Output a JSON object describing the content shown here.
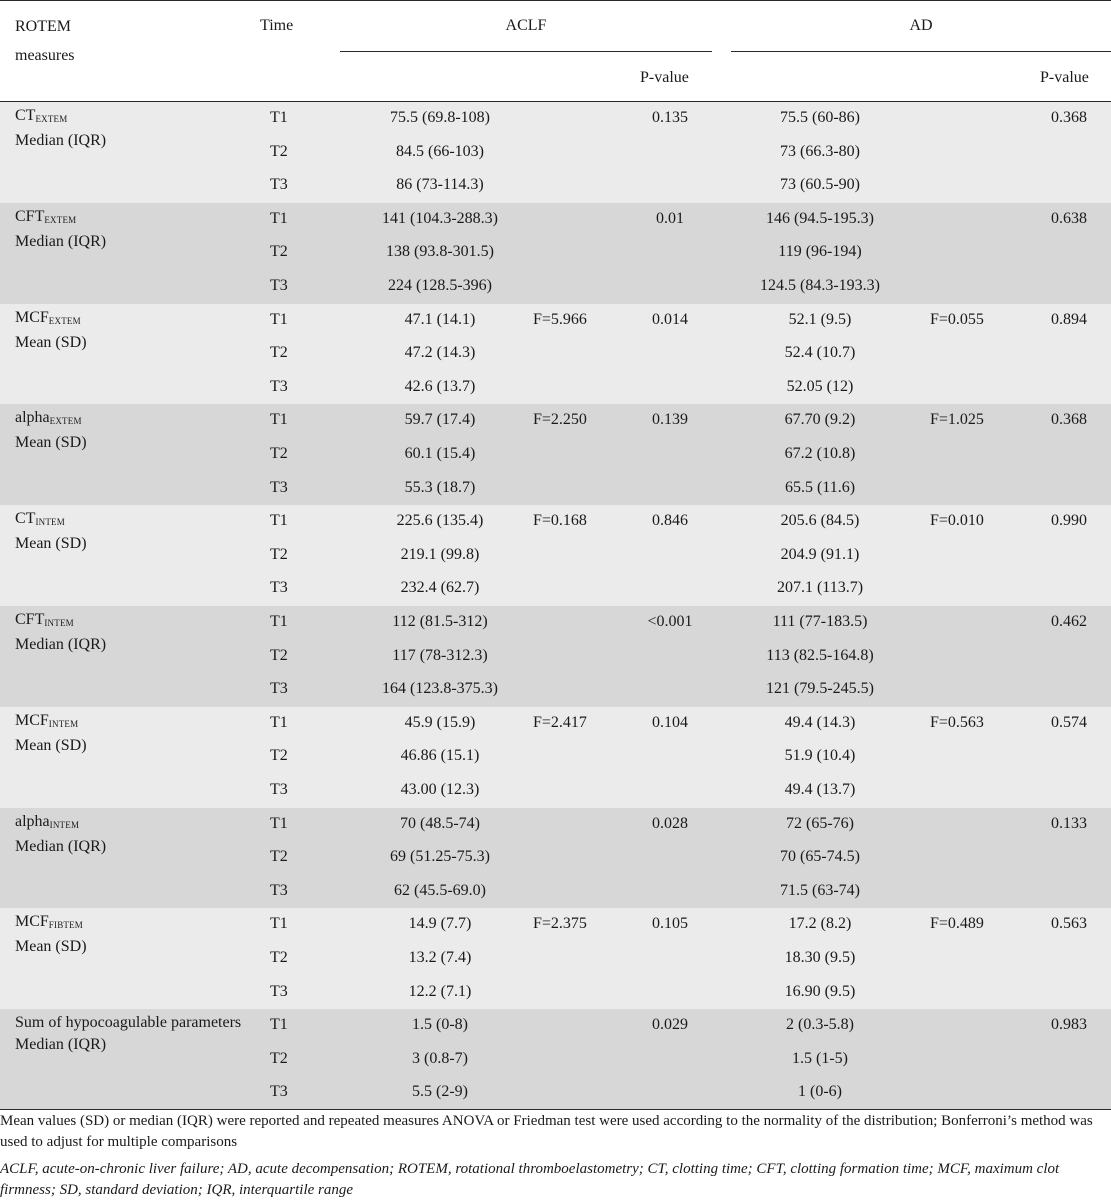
{
  "header": {
    "measure_col": "ROTEM measures",
    "time_col": "Time",
    "group_a": "ACLF",
    "group_b": "AD",
    "pvalue_a": "P-value",
    "pvalue_b": "P-value"
  },
  "groups": [
    {
      "name": "CT",
      "sub": "EXTEM",
      "stat": "Median (IQR)",
      "rows": [
        {
          "time": "T1",
          "aclf": "75.5 (69.8-108)",
          "aclf_f": "",
          "aclf_p": "0.135",
          "ad": "75.5 (60-86)",
          "ad_f": "",
          "ad_p": "0.368"
        },
        {
          "time": "T2",
          "aclf": "84.5 (66-103)",
          "aclf_f": "",
          "aclf_p": "",
          "ad": "73 (66.3-80)",
          "ad_f": "",
          "ad_p": ""
        },
        {
          "time": "T3",
          "aclf": "86 (73-114.3)",
          "aclf_f": "",
          "aclf_p": "",
          "ad": "73 (60.5-90)",
          "ad_f": "",
          "ad_p": ""
        }
      ]
    },
    {
      "name": "CFT",
      "sub": "EXTEM",
      "stat": "Median (IQR)",
      "rows": [
        {
          "time": "T1",
          "aclf": "141 (104.3-288.3)",
          "aclf_f": "",
          "aclf_p": "0.01",
          "ad": "146 (94.5-195.3)",
          "ad_f": "",
          "ad_p": "0.638"
        },
        {
          "time": "T2",
          "aclf": "138 (93.8-301.5)",
          "aclf_f": "",
          "aclf_p": "",
          "ad": "119 (96-194)",
          "ad_f": "",
          "ad_p": ""
        },
        {
          "time": "T3",
          "aclf": "224 (128.5-396)",
          "aclf_f": "",
          "aclf_p": "",
          "ad": "124.5 (84.3-193.3)",
          "ad_f": "",
          "ad_p": ""
        }
      ]
    },
    {
      "name": "MCF",
      "sub": "EXTEM",
      "stat": "Mean (SD)",
      "rows": [
        {
          "time": "T1",
          "aclf": "47.1 (14.1)",
          "aclf_f": "F=5.966",
          "aclf_p": "0.014",
          "ad": "52.1 (9.5)",
          "ad_f": "F=0.055",
          "ad_p": "0.894"
        },
        {
          "time": "T2",
          "aclf": "47.2 (14.3)",
          "aclf_f": "",
          "aclf_p": "",
          "ad": "52.4 (10.7)",
          "ad_f": "",
          "ad_p": ""
        },
        {
          "time": "T3",
          "aclf": "42.6 (13.7)",
          "aclf_f": "",
          "aclf_p": "",
          "ad": "52.05 (12)",
          "ad_f": "",
          "ad_p": ""
        }
      ]
    },
    {
      "name": "alpha",
      "sub": "EXTEM",
      "stat": "Mean (SD)",
      "rows": [
        {
          "time": "T1",
          "aclf": "59.7 (17.4)",
          "aclf_f": "F=2.250",
          "aclf_p": "0.139",
          "ad": "67.70 (9.2)",
          "ad_f": "F=1.025",
          "ad_p": "0.368"
        },
        {
          "time": "T2",
          "aclf": "60.1 (15.4)",
          "aclf_f": "",
          "aclf_p": "",
          "ad": "67.2 (10.8)",
          "ad_f": "",
          "ad_p": ""
        },
        {
          "time": "T3",
          "aclf": "55.3 (18.7)",
          "aclf_f": "",
          "aclf_p": "",
          "ad": "65.5 (11.6)",
          "ad_f": "",
          "ad_p": ""
        }
      ]
    },
    {
      "name": "CT",
      "sub": "INTEM",
      "stat": "Mean (SD)",
      "rows": [
        {
          "time": "T1",
          "aclf": "225.6 (135.4)",
          "aclf_f": "F=0.168",
          "aclf_p": "0.846",
          "ad": "205.6 (84.5)",
          "ad_f": "F=0.010",
          "ad_p": "0.990"
        },
        {
          "time": "T2",
          "aclf": "219.1 (99.8)",
          "aclf_f": "",
          "aclf_p": "",
          "ad": "204.9 (91.1)",
          "ad_f": "",
          "ad_p": ""
        },
        {
          "time": "T3",
          "aclf": "232.4 (62.7)",
          "aclf_f": "",
          "aclf_p": "",
          "ad": "207.1 (113.7)",
          "ad_f": "",
          "ad_p": ""
        }
      ]
    },
    {
      "name": "CFT",
      "sub": "INTEM",
      "stat": "Median (IQR)",
      "rows": [
        {
          "time": "T1",
          "aclf": "112 (81.5-312)",
          "aclf_f": "",
          "aclf_p": "<0.001",
          "ad": "111 (77-183.5)",
          "ad_f": "",
          "ad_p": "0.462"
        },
        {
          "time": "T2",
          "aclf": "117 (78-312.3)",
          "aclf_f": "",
          "aclf_p": "",
          "ad": "113 (82.5-164.8)",
          "ad_f": "",
          "ad_p": ""
        },
        {
          "time": "T3",
          "aclf": "164 (123.8-375.3)",
          "aclf_f": "",
          "aclf_p": "",
          "ad": "121 (79.5-245.5)",
          "ad_f": "",
          "ad_p": ""
        }
      ]
    },
    {
      "name": "MCF",
      "sub": "INTEM",
      "stat": "Mean (SD)",
      "rows": [
        {
          "time": "T1",
          "aclf": "45.9 (15.9)",
          "aclf_f": "F=2.417",
          "aclf_p": "0.104",
          "ad": "49.4 (14.3)",
          "ad_f": "F=0.563",
          "ad_p": "0.574"
        },
        {
          "time": "T2",
          "aclf": "46.86 (15.1)",
          "aclf_f": "",
          "aclf_p": "",
          "ad": "51.9 (10.4)",
          "ad_f": "",
          "ad_p": ""
        },
        {
          "time": "T3",
          "aclf": "43.00 (12.3)",
          "aclf_f": "",
          "aclf_p": "",
          "ad": "49.4 (13.7)",
          "ad_f": "",
          "ad_p": ""
        }
      ]
    },
    {
      "name": "alpha",
      "sub": "INTEM",
      "stat": "Median (IQR)",
      "rows": [
        {
          "time": "T1",
          "aclf": "70 (48.5-74)",
          "aclf_f": "",
          "aclf_p": "0.028",
          "ad": "72 (65-76)",
          "ad_f": "",
          "ad_p": "0.133"
        },
        {
          "time": "T2",
          "aclf": "69 (51.25-75.3)",
          "aclf_f": "",
          "aclf_p": "",
          "ad": "70 (65-74.5)",
          "ad_f": "",
          "ad_p": ""
        },
        {
          "time": "T3",
          "aclf": "62 (45.5-69.0)",
          "aclf_f": "",
          "aclf_p": "",
          "ad": "71.5 (63-74)",
          "ad_f": "",
          "ad_p": ""
        }
      ]
    },
    {
      "name": "MCF",
      "sub": "FIBTEM",
      "stat": "Mean (SD)",
      "rows": [
        {
          "time": "T1",
          "aclf": "14.9 (7.7)",
          "aclf_f": "F=2.375",
          "aclf_p": "0.105",
          "ad": "17.2 (8.2)",
          "ad_f": "F=0.489",
          "ad_p": "0.563"
        },
        {
          "time": "T2",
          "aclf": "13.2 (7.4)",
          "aclf_f": "",
          "aclf_p": "",
          "ad": "18.30 (9.5)",
          "ad_f": "",
          "ad_p": ""
        },
        {
          "time": "T3",
          "aclf": "12.2 (7.1)",
          "aclf_f": "",
          "aclf_p": "",
          "ad": "16.90 (9.5)",
          "ad_f": "",
          "ad_p": ""
        }
      ]
    },
    {
      "name": "Sum of hypocoagulable parameters",
      "sub": "",
      "stat": "Median (IQR)",
      "rows": [
        {
          "time": "T1",
          "aclf": "1.5 (0-8)",
          "aclf_f": "",
          "aclf_p": "0.029",
          "ad": "2 (0.3-5.8)",
          "ad_f": "",
          "ad_p": "0.983"
        },
        {
          "time": "T2",
          "aclf": "3 (0.8-7)",
          "aclf_f": "",
          "aclf_p": "",
          "ad": "1.5 (1-5)",
          "ad_f": "",
          "ad_p": ""
        },
        {
          "time": "T3",
          "aclf": "5.5 (2-9)",
          "aclf_f": "",
          "aclf_p": "",
          "ad": "1 (0-6)",
          "ad_f": "",
          "ad_p": ""
        }
      ]
    }
  ],
  "footnotes": {
    "methods": "Mean values (SD) or median (IQR) were reported and repeated measures ANOVA or Friedman test were used according to the normality of the distribution; Bonferroni’s method was used to adjust for multiple comparisons",
    "abbreviations": "ACLF, acute-on-chronic liver failure; AD, acute decompensation; ROTEM, rotational thromboelastometry; CT, clotting time; CFT, clotting formation time; MCF, maximum clot firmness; SD, standard deviation; IQR, interquartile range"
  }
}
